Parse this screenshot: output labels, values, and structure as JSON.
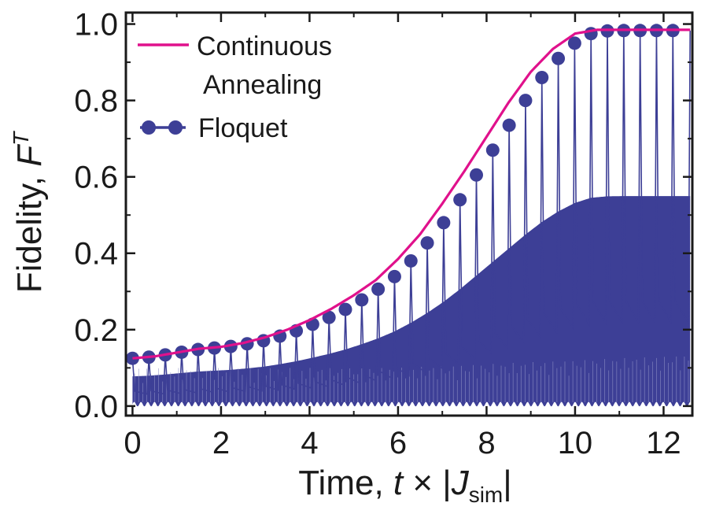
{
  "chart_data": {
    "type": "line",
    "title": "",
    "xlabel": {
      "prefix": "Time, ",
      "var": "t",
      "times": " × |",
      "sym": "J",
      "sub": "sim",
      "suffix": "|"
    },
    "ylabel": {
      "prefix": "Fidelity, ",
      "sym": "F",
      "sup": "T"
    },
    "xlim": [
      -0.15,
      12.65
    ],
    "ylim": [
      -0.025,
      1.03
    ],
    "xticks": [
      0,
      2,
      4,
      6,
      8,
      10,
      12
    ],
    "xtick_labels": [
      "0",
      "2",
      "4",
      "6",
      "8",
      "10",
      "12"
    ],
    "yticks": [
      0.0,
      0.2,
      0.4,
      0.6,
      0.8,
      1.0
    ],
    "ytick_labels": [
      "0.0",
      "0.2",
      "0.4",
      "0.6",
      "0.8",
      "1.0"
    ],
    "grid": false,
    "legend_position": "top-left",
    "series": [
      {
        "name": "Continuous\nAnnealing",
        "color": "#e0118c",
        "style": "line",
        "x": [
          0,
          0.5,
          1,
          1.5,
          2,
          2.5,
          3,
          3.5,
          4,
          4.5,
          5,
          5.5,
          6,
          6.5,
          7,
          7.5,
          8,
          8.5,
          9,
          9.5,
          10,
          10.5,
          11,
          11.5,
          12,
          12.6
        ],
        "y": [
          0.125,
          0.13,
          0.14,
          0.15,
          0.155,
          0.165,
          0.18,
          0.2,
          0.225,
          0.255,
          0.29,
          0.33,
          0.385,
          0.45,
          0.53,
          0.615,
          0.705,
          0.795,
          0.875,
          0.935,
          0.975,
          0.985,
          0.985,
          0.985,
          0.985,
          0.985
        ]
      },
      {
        "name": "Floquet",
        "color": "#3d3f96",
        "style": "line+markers+oscillation",
        "x": [
          0,
          0.37,
          0.74,
          1.11,
          1.48,
          1.85,
          2.22,
          2.59,
          2.96,
          3.33,
          3.7,
          4.07,
          4.44,
          4.81,
          5.18,
          5.55,
          5.92,
          6.29,
          6.66,
          7.03,
          7.4,
          7.77,
          8.14,
          8.51,
          8.88,
          9.25,
          9.62,
          9.99,
          10.36,
          10.73,
          11.1,
          11.47,
          11.84,
          12.21
        ],
        "y": [
          0.125,
          0.128,
          0.134,
          0.141,
          0.148,
          0.152,
          0.156,
          0.163,
          0.171,
          0.183,
          0.197,
          0.214,
          0.232,
          0.253,
          0.278,
          0.306,
          0.339,
          0.38,
          0.427,
          0.48,
          0.54,
          0.605,
          0.67,
          0.735,
          0.8,
          0.86,
          0.91,
          0.95,
          0.975,
          0.982,
          0.983,
          0.983,
          0.983,
          0.983
        ]
      }
    ]
  }
}
